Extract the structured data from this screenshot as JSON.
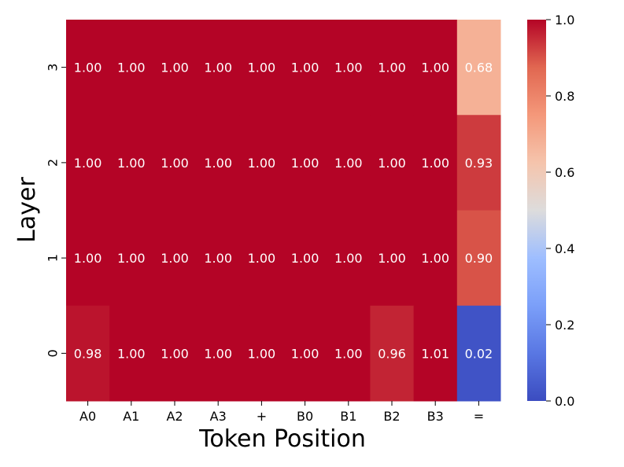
{
  "chart_data": {
    "type": "heatmap",
    "title": "",
    "xlabel": "Token Position",
    "ylabel": "Layer",
    "x_categories": [
      "A0",
      "A1",
      "A2",
      "A3",
      "+",
      "B0",
      "B1",
      "B2",
      "B3",
      "="
    ],
    "y_categories": [
      "3",
      "2",
      "1",
      "0"
    ],
    "values": [
      [
        1.0,
        1.0,
        1.0,
        1.0,
        1.0,
        1.0,
        1.0,
        1.0,
        1.0,
        0.68
      ],
      [
        1.0,
        1.0,
        1.0,
        1.0,
        1.0,
        1.0,
        1.0,
        1.0,
        1.0,
        0.93
      ],
      [
        1.0,
        1.0,
        1.0,
        1.0,
        1.0,
        1.0,
        1.0,
        1.0,
        1.0,
        0.9
      ],
      [
        0.98,
        1.0,
        1.0,
        1.0,
        1.0,
        1.0,
        1.0,
        0.96,
        1.01,
        0.02
      ]
    ],
    "cell_labels": [
      [
        "1.00",
        "1.00",
        "1.00",
        "1.00",
        "1.00",
        "1.00",
        "1.00",
        "1.00",
        "1.00",
        "0.68"
      ],
      [
        "1.00",
        "1.00",
        "1.00",
        "1.00",
        "1.00",
        "1.00",
        "1.00",
        "1.00",
        "1.00",
        "0.93"
      ],
      [
        "1.00",
        "1.00",
        "1.00",
        "1.00",
        "1.00",
        "1.00",
        "1.00",
        "1.00",
        "1.00",
        "0.90"
      ],
      [
        "0.98",
        "1.00",
        "1.00",
        "1.00",
        "1.00",
        "1.00",
        "1.00",
        "0.96",
        "1.01",
        "0.02"
      ]
    ],
    "colormap": "coolwarm",
    "vmin": 0.0,
    "vmax": 1.0,
    "colorbar_ticks": [
      "0.0",
      "0.2",
      "0.4",
      "0.6",
      "0.8",
      "1.0"
    ],
    "colorbar_tick_values": [
      0.0,
      0.2,
      0.4,
      0.6,
      0.8,
      1.0
    ],
    "colors": {
      "low": "#3b4cc0",
      "mid": "#dddddd",
      "high": "#b40426",
      "label_text": "#ffffff"
    }
  }
}
